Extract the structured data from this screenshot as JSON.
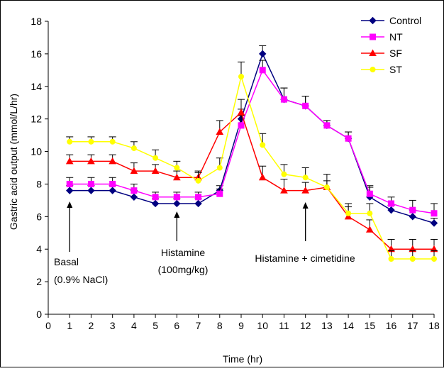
{
  "chart_data": {
    "type": "line",
    "title": "",
    "xlabel": "Time (hr)",
    "ylabel": "Gastric acid output (mmol/L/hr)",
    "xlim": [
      0,
      18
    ],
    "ylim": [
      0,
      18
    ],
    "x_ticks": [
      "0",
      "1",
      "2",
      "3",
      "4",
      "5",
      "6",
      "7",
      "8",
      "9",
      "10",
      "11",
      "12",
      "13",
      "14",
      "15",
      "16",
      "17",
      "18"
    ],
    "y_ticks": [
      "0",
      "2",
      "4",
      "6",
      "8",
      "10",
      "12",
      "14",
      "16",
      "18"
    ],
    "grid": false,
    "legend_position": "top-right",
    "x": [
      1,
      2,
      3,
      4,
      5,
      6,
      7,
      8,
      9,
      10,
      11,
      12,
      13,
      14,
      15,
      16,
      17,
      18
    ],
    "series": [
      {
        "name": "Control",
        "color": "#000080",
        "marker": "diamond",
        "values": [
          7.6,
          7.6,
          7.6,
          7.2,
          6.8,
          6.8,
          6.8,
          7.6,
          12.0,
          16.0,
          13.2,
          12.8,
          11.6,
          10.8,
          7.2,
          6.4,
          6.0,
          5.6
        ],
        "errors": [
          0.3,
          0.3,
          0.3,
          0.4,
          0.3,
          0.3,
          0.3,
          0.3,
          0.6,
          0.5,
          0.7,
          0.6,
          0.3,
          0.4,
          0.6,
          0.3,
          0.4,
          0.3
        ]
      },
      {
        "name": "NT",
        "color": "#ff00ff",
        "marker": "square",
        "values": [
          8.0,
          8.0,
          8.0,
          7.6,
          7.2,
          7.2,
          7.2,
          7.4,
          11.6,
          15.0,
          13.2,
          12.8,
          11.6,
          10.8,
          7.4,
          6.8,
          6.4,
          6.2
        ],
        "errors": [
          0.4,
          0.4,
          0.4,
          0.4,
          0.3,
          0.3,
          0.3,
          0.3,
          0.6,
          0.6,
          0.7,
          0.6,
          0.3,
          0.4,
          0.5,
          0.4,
          0.6,
          0.6
        ]
      },
      {
        "name": "SF",
        "color": "#ff0000",
        "marker": "triangle",
        "values": [
          9.4,
          9.4,
          9.4,
          8.8,
          8.8,
          8.4,
          8.4,
          11.2,
          12.4,
          8.4,
          7.6,
          7.6,
          7.8,
          6.0,
          5.2,
          4.0,
          4.0,
          4.0
        ],
        "errors": [
          0.4,
          0.4,
          0.4,
          0.5,
          0.4,
          0.4,
          0.4,
          0.7,
          0.8,
          0.7,
          0.7,
          0.5,
          0.8,
          0.6,
          0.6,
          0.6,
          0.6,
          0.6
        ]
      },
      {
        "name": "ST",
        "color": "#ffff00",
        "marker": "circle",
        "values": [
          10.6,
          10.6,
          10.6,
          10.2,
          9.6,
          9.0,
          8.2,
          9.0,
          14.6,
          10.4,
          8.6,
          8.4,
          7.8,
          6.2,
          6.2,
          3.4,
          3.4,
          3.4
        ],
        "errors": [
          0.3,
          0.3,
          0.3,
          0.4,
          0.5,
          0.4,
          0.5,
          0.6,
          0.9,
          0.7,
          0.6,
          0.6,
          0.4,
          0.6,
          0.6,
          0.5,
          0.5,
          0.5
        ]
      }
    ],
    "annotations": [
      {
        "id": "basal",
        "lines": [
          "Basal",
          "(0.9% NaCl)"
        ],
        "arrow_x": 1
      },
      {
        "id": "histamine",
        "lines": [
          "Histamine",
          "(100mg/kg)"
        ],
        "arrow_x": 6
      },
      {
        "id": "cimetidine",
        "lines": [
          "Histamine + cimetidine"
        ],
        "arrow_x": 12
      }
    ]
  }
}
